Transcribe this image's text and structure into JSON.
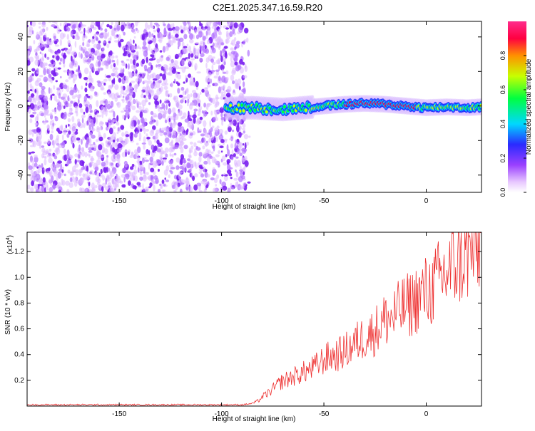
{
  "title": "C2E1.2025.347.16.59.R20",
  "chart_data": [
    {
      "type": "heatmap",
      "xlabel": "Height of straight line (km)",
      "ylabel": "Frequency (Hz)",
      "xlim": [
        -195,
        27
      ],
      "ylim": [
        -50,
        49
      ],
      "xticks": [
        -150,
        -100,
        -50,
        0
      ],
      "xtick_labels": [
        "-150",
        "-100",
        "-50",
        "0"
      ],
      "yticks": [
        -40,
        -20,
        0,
        20,
        40
      ],
      "ytick_labels": [
        "-40",
        "-20",
        "0",
        "20",
        "40"
      ],
      "noise_region_x": [
        -195,
        -88
      ],
      "signal_region_x": [
        -98,
        27
      ],
      "signal_center_track": [
        {
          "x": -98,
          "y": -1.5
        },
        {
          "x": -85,
          "y": -1
        },
        {
          "x": -70,
          "y": -2
        },
        {
          "x": -60,
          "y": -1
        },
        {
          "x": -50,
          "y": 0
        },
        {
          "x": -40,
          "y": 1
        },
        {
          "x": -30,
          "y": 1.5
        },
        {
          "x": -20,
          "y": 1
        },
        {
          "x": -10,
          "y": 0
        },
        {
          "x": 0,
          "y": -1
        },
        {
          "x": 10,
          "y": -0.5
        },
        {
          "x": 20,
          "y": -1
        },
        {
          "x": 27,
          "y": -0.5
        }
      ],
      "colorbar": {
        "label": "Normalized spectral amplitude",
        "range": [
          0,
          1
        ],
        "ticks": [
          0,
          0.2,
          0.4,
          0.6,
          0.8
        ],
        "tick_labels": [
          "0.0",
          "0.2",
          "0.4",
          "0.6",
          "0.8"
        ],
        "colors": [
          "#ffffff",
          "#e8c8ff",
          "#9a40ff",
          "#2a2aff",
          "#00d8ff",
          "#00ff40",
          "#c8ff00",
          "#ff9000",
          "#ff0040",
          "#ff2c8c"
        ]
      }
    },
    {
      "type": "line",
      "xlabel": "Height of straight line (km)",
      "ylabel": "SNR (10 * v/v)",
      "y_multiplier_label": "(x10",
      "y_multiplier_exp": "4",
      "y_multiplier_close": ")",
      "xlim": [
        -195,
        27
      ],
      "ylim": [
        0,
        1.35
      ],
      "xticks": [
        -150,
        -100,
        -50,
        0
      ],
      "xtick_labels": [
        "-150",
        "-100",
        "-50",
        "0"
      ],
      "yticks": [
        0.2,
        0.4,
        0.6,
        0.8,
        1.0,
        1.2
      ],
      "ytick_labels": [
        "0.2",
        "0.4",
        "0.6",
        "0.8",
        "1.0",
        "1.2"
      ],
      "series": [
        {
          "name": "SNR",
          "color": "#ee3333",
          "x": [
            -195,
            -180,
            -160,
            -140,
            -120,
            -100,
            -90,
            -85,
            -82,
            -80,
            -77,
            -74,
            -71,
            -68,
            -65,
            -62,
            -59,
            -56,
            -53,
            -50,
            -47,
            -44,
            -41,
            -38,
            -35,
            -32,
            -29,
            -26,
            -23,
            -20,
            -17,
            -14,
            -11,
            -8,
            -5,
            -2,
            1,
            4,
            7,
            10,
            13,
            16,
            19,
            22,
            25,
            27
          ],
          "values": [
            0.01,
            0.01,
            0.01,
            0.01,
            0.01,
            0.01,
            0.01,
            0.02,
            0.04,
            0.07,
            0.1,
            0.14,
            0.18,
            0.2,
            0.22,
            0.24,
            0.26,
            0.28,
            0.31,
            0.35,
            0.37,
            0.38,
            0.4,
            0.43,
            0.47,
            0.5,
            0.53,
            0.55,
            0.6,
            0.65,
            0.66,
            0.7,
            0.74,
            0.76,
            0.8,
            0.84,
            0.86,
            0.9,
            0.96,
            1.0,
            1.04,
            1.1,
            1.12,
            1.16,
            1.2,
            1.22
          ]
        }
      ]
    }
  ]
}
